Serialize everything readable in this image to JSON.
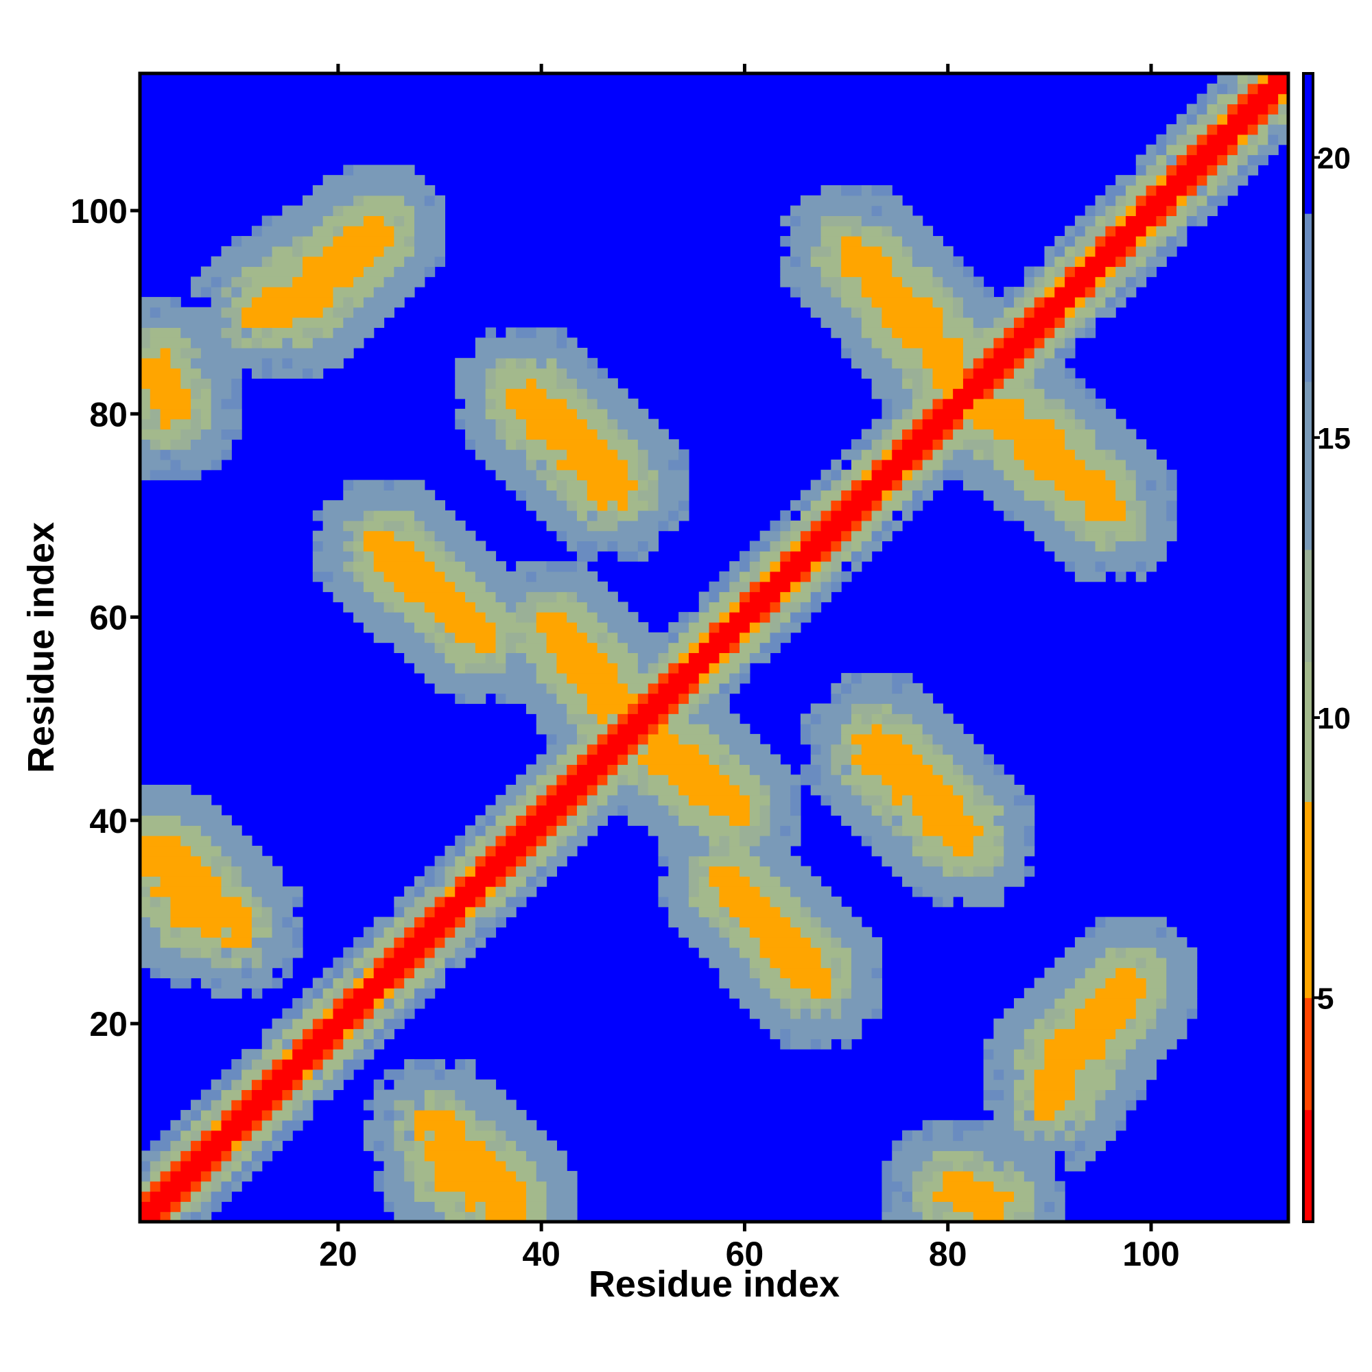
{
  "chart_data": {
    "type": "heatmap",
    "xlabel": "Residue index",
    "ylabel": "Residue index",
    "xlim": [
      1,
      113
    ],
    "ylim": [
      1,
      113
    ],
    "x_ticks": [
      20,
      40,
      60,
      80,
      100
    ],
    "y_ticks": [
      20,
      40,
      60,
      80,
      100
    ],
    "colorbar": {
      "ticks": [
        5,
        10,
        15,
        20
      ],
      "range": [
        1,
        21.5
      ],
      "colors": [
        {
          "from": 1,
          "to": 3,
          "color": "#ff0000"
        },
        {
          "from": 3,
          "to": 5,
          "color": "#ff4500"
        },
        {
          "from": 5,
          "to": 8.5,
          "color": "#ffa500"
        },
        {
          "from": 8.5,
          "to": 11,
          "color": "#a3b98c"
        },
        {
          "from": 11,
          "to": 13,
          "color": "#9ab097"
        },
        {
          "from": 13,
          "to": 16,
          "color": "#7a9ab8"
        },
        {
          "from": 16,
          "to": 19,
          "color": "#6a8cc0"
        },
        {
          "from": 19,
          "to": 21.5,
          "color": "#0000ff"
        }
      ]
    },
    "n_residues": 113,
    "value_description": "pairwise residue distance map, symmetric about the diagonal",
    "background_value": 21,
    "features": [
      {
        "kind": "diagonal",
        "value": 1
      },
      {
        "kind": "antiparallel_band",
        "x": [
          3,
          10
        ],
        "y": [
          37,
          29
        ],
        "value": 6
      },
      {
        "kind": "antiparallel_band",
        "x": [
          12,
          24
        ],
        "y": [
          90,
          98
        ],
        "value": 6
      },
      {
        "kind": "antiparallel_band",
        "x": [
          24,
          33
        ],
        "y": [
          67,
          59
        ],
        "value": 6
      },
      {
        "kind": "antiparallel_band",
        "x": [
          30,
          37
        ],
        "y": [
          6,
          1
        ],
        "value": 6
      },
      {
        "kind": "antiparallel_band",
        "x": [
          38,
          48
        ],
        "y": [
          82,
          73
        ],
        "value": 6
      },
      {
        "kind": "antiparallel_band",
        "x": [
          41,
          47
        ],
        "y": [
          59,
          51
        ],
        "value": 6
      },
      {
        "kind": "antiparallel_band",
        "x": [
          51,
          58
        ],
        "y": [
          48,
          42
        ],
        "value": 6
      },
      {
        "kind": "antiparallel_band",
        "x": [
          58,
          67
        ],
        "y": [
          34,
          24
        ],
        "value": 6
      },
      {
        "kind": "antiparallel_band",
        "x": [
          70,
          80
        ],
        "y": [
          96,
          86
        ],
        "value": 6
      },
      {
        "kind": "antiparallel_band",
        "x": [
          72,
          81
        ],
        "y": [
          47,
          38
        ],
        "value": 6
      },
      {
        "kind": "antiparallel_band",
        "x": [
          82,
          95
        ],
        "y": [
          82,
          71
        ],
        "value": 6
      },
      {
        "kind": "antiparallel_band",
        "x": [
          90,
          98
        ],
        "y": [
          16,
          24
        ],
        "value": 6
      },
      {
        "kind": "antiparallel_band",
        "x": [
          2,
          4
        ],
        "y": [
          85,
          80
        ],
        "value": 6
      }
    ]
  }
}
